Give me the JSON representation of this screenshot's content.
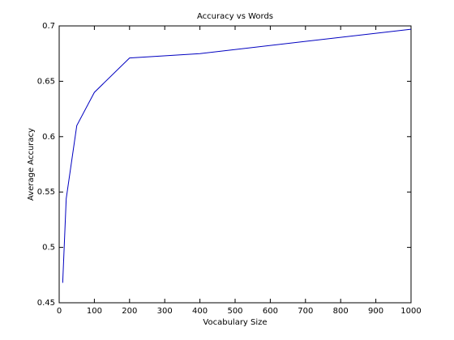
{
  "chart_data": {
    "type": "line",
    "title": "Accuracy vs Words",
    "x_label": "Vocabulary Size",
    "y_label": "Average Accuracy",
    "x": [
      10,
      20,
      50,
      100,
      200,
      400,
      1000
    ],
    "values": [
      0.468,
      0.544,
      0.61,
      0.64,
      0.671,
      0.675,
      0.697
    ],
    "color": "#0000c0",
    "xlim": [
      0,
      1000
    ],
    "xticks": [
      0,
      100,
      200,
      300,
      400,
      500,
      600,
      700,
      800,
      900,
      1000
    ],
    "ylim": [
      0.45,
      0.7
    ],
    "yticks": [
      0.45,
      0.5,
      0.55,
      0.6,
      0.65,
      0.7
    ],
    "grid": false
  }
}
